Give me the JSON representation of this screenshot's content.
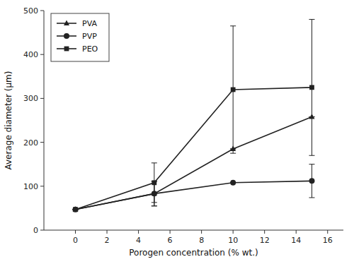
{
  "chart_data": {
    "type": "line",
    "xlabel": "Porogen concentration (% wt.)",
    "ylabel": "Average diameter (μm)",
    "x": [
      0,
      5,
      10,
      15
    ],
    "xlim": [
      -2,
      17
    ],
    "ylim": [
      0,
      500
    ],
    "xticks": [
      0,
      2,
      4,
      6,
      8,
      10,
      12,
      14,
      16
    ],
    "yticks": [
      0,
      100,
      200,
      300,
      400,
      500
    ],
    "legend": "upper left",
    "series": [
      {
        "name": "PVA",
        "color": "#222222",
        "marker": "triangle",
        "line_style": "solid",
        "values": [
          47,
          83,
          185,
          258
        ],
        "errors": [
          0,
          28,
          0,
          0
        ]
      },
      {
        "name": "PVP",
        "color": "#222222",
        "marker": "circle",
        "line_style": "solid",
        "values": [
          47,
          83,
          108,
          112
        ],
        "errors": [
          0,
          28,
          0,
          38
        ]
      },
      {
        "name": "PEO",
        "color": "#222222",
        "marker": "square",
        "line_style": "solid",
        "values": [
          47,
          108,
          320,
          325
        ],
        "errors": [
          0,
          45,
          145,
          155
        ]
      }
    ]
  }
}
